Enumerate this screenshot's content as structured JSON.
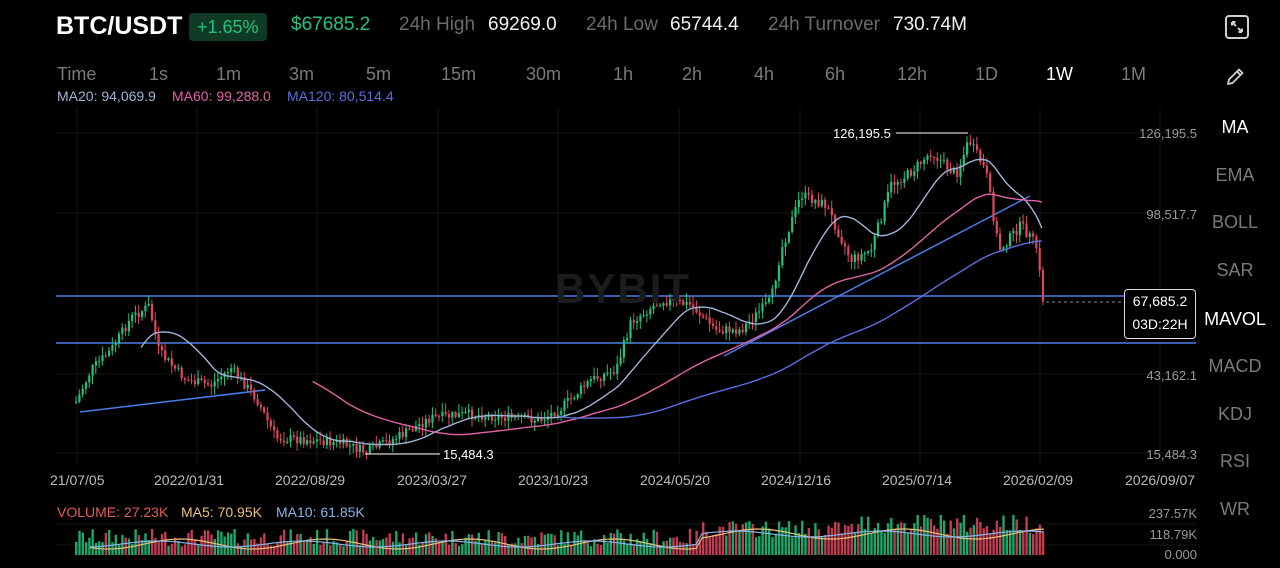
{
  "header": {
    "pair": "BTC/USDT",
    "change": "+1.65%",
    "price": "$67685.2",
    "high_label": "24h High",
    "high_value": "69269.0",
    "low_label": "24h Low",
    "low_value": "65744.4",
    "turnover_label": "24h Turnover",
    "turnover_value": "730.74M"
  },
  "timeframes": [
    "Time",
    "1s",
    "1m",
    "3m",
    "5m",
    "15m",
    "30m",
    "1h",
    "2h",
    "4h",
    "6h",
    "12h",
    "1D",
    "1W",
    "1M"
  ],
  "timeframe_active": "1W",
  "ma_legend": {
    "ma20": "MA20: 94,069.9",
    "ma60": "MA60: 99,288.0",
    "ma120": "MA120: 80,514.4"
  },
  "indicators": [
    "MA",
    "EMA",
    "BOLL",
    "SAR",
    "MAVOL",
    "MACD",
    "KDJ",
    "RSI",
    "WR"
  ],
  "indicators_active": [
    "MA",
    "MAVOL"
  ],
  "price_axis": [
    "126,195.5",
    "98,517.7",
    "43,162.1",
    "15,484.3"
  ],
  "date_axis": [
    "21/07/05",
    "2022/01/31",
    "2022/08/29",
    "2023/03/27",
    "2023/10/23",
    "2024/05/20",
    "2024/12/16",
    "2025/07/14",
    "2026/02/09",
    "2026/09/07"
  ],
  "annotations": {
    "high": "126,195.5",
    "low": "15,484.3"
  },
  "last": {
    "price": "67,685.2",
    "countdown": "03D:22H"
  },
  "volume_legend": {
    "volume": "VOLUME: 27.23K",
    "ma5": "MA5: 70.95K",
    "ma10": "MA10: 61.85K"
  },
  "volume_axis": [
    "237.57K",
    "118.79K",
    "0.000"
  ],
  "watermark": "BYBIT",
  "colors": {
    "up": "#21c37a",
    "down": "#e0475f",
    "ma20": "#9fb4d6",
    "ma60": "#e063a6",
    "ma120": "#5a6fe0",
    "ma5_vol": "#e8c07a",
    "ma10_vol": "#86b4e8",
    "volume_label": "#e65a5a",
    "hline": "#4a7de8"
  },
  "icons": {
    "expand": "expand-icon",
    "draw": "pencil-icon"
  }
}
